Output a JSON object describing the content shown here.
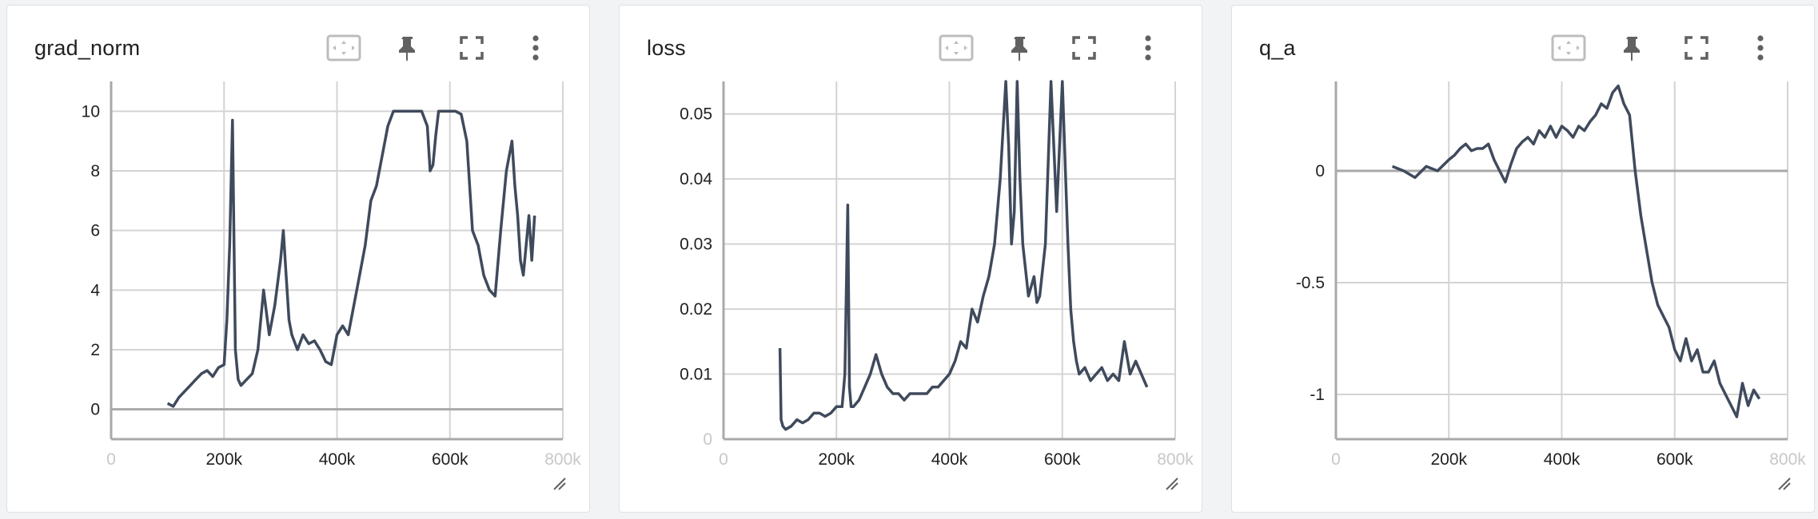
{
  "colors": {
    "line": "#3f4a5c",
    "grid": "#d4d4d4",
    "axis": "#a9a9a9",
    "tool": "#616161"
  },
  "toolbar": {
    "fit_domain_icon": "fit-domain-icon",
    "pin_icon": "pin-icon",
    "fullscreen_icon": "fullscreen-icon",
    "more_icon": "more-vert-icon",
    "resize_icon": "resize-handle-icon"
  },
  "cards": [
    {
      "title": "grad_norm"
    },
    {
      "title": "loss"
    },
    {
      "title": "q_a"
    }
  ],
  "chart_data": [
    {
      "type": "line",
      "title": "grad_norm",
      "xlabel": "",
      "ylabel": "",
      "xlim": [
        0,
        800000
      ],
      "ylim": [
        -1,
        11
      ],
      "grid": true,
      "xticks": [
        {
          "v": 0,
          "t": "0",
          "faded": true
        },
        {
          "v": 200000,
          "t": "200k"
        },
        {
          "v": 400000,
          "t": "400k"
        },
        {
          "v": 600000,
          "t": "600k"
        },
        {
          "v": 800000,
          "t": "800k",
          "faded": true
        }
      ],
      "yticks": [
        {
          "v": 0,
          "t": "0"
        },
        {
          "v": 2,
          "t": "2"
        },
        {
          "v": 4,
          "t": "4"
        },
        {
          "v": 6,
          "t": "6"
        },
        {
          "v": 8,
          "t": "8"
        },
        {
          "v": 10,
          "t": "10"
        }
      ],
      "series": [
        {
          "x": [
            100000,
            110000,
            120000,
            130000,
            140000,
            150000,
            160000,
            170000,
            180000,
            190000,
            200000,
            205000,
            210000,
            215000,
            220000,
            225000,
            230000,
            240000,
            250000,
            260000,
            270000,
            280000,
            290000,
            300000,
            305000,
            310000,
            315000,
            320000,
            330000,
            340000,
            350000,
            360000,
            370000,
            380000,
            390000,
            400000,
            410000,
            420000,
            430000,
            440000,
            450000,
            460000,
            470000,
            480000,
            490000,
            500000,
            510000,
            520000,
            530000,
            540000,
            550000,
            560000,
            565000,
            570000,
            575000,
            580000,
            590000,
            600000,
            610000,
            620000,
            630000,
            640000,
            650000,
            660000,
            670000,
            680000,
            690000,
            700000,
            710000,
            715000,
            720000,
            725000,
            730000,
            740000,
            745000,
            750000
          ],
          "y": [
            0.2,
            0.1,
            0.4,
            0.6,
            0.8,
            1.0,
            1.2,
            1.3,
            1.1,
            1.4,
            1.5,
            3.0,
            5.5,
            9.7,
            2.0,
            1.0,
            0.8,
            1.0,
            1.2,
            2.0,
            4.0,
            2.5,
            3.5,
            5.0,
            6.0,
            4.5,
            3.0,
            2.5,
            2.0,
            2.5,
            2.2,
            2.3,
            2.0,
            1.6,
            1.5,
            2.5,
            2.8,
            2.5,
            3.5,
            4.5,
            5.5,
            7.0,
            7.5,
            8.5,
            9.5,
            10.0,
            10.0,
            10.0,
            10.0,
            10.0,
            10.0,
            9.5,
            8.0,
            8.2,
            9.2,
            10.0,
            10.0,
            10.0,
            10.0,
            9.9,
            9.0,
            6.0,
            5.5,
            4.5,
            4.0,
            3.8,
            6.0,
            8.0,
            9.0,
            7.5,
            6.5,
            5.0,
            4.5,
            6.5,
            5.0,
            6.5
          ]
        }
      ]
    },
    {
      "type": "line",
      "title": "loss",
      "xlabel": "",
      "ylabel": "",
      "xlim": [
        0,
        800000
      ],
      "ylim": [
        0,
        0.055
      ],
      "grid": true,
      "xticks": [
        {
          "v": 0,
          "t": "0",
          "faded": true
        },
        {
          "v": 200000,
          "t": "200k"
        },
        {
          "v": 400000,
          "t": "400k"
        },
        {
          "v": 600000,
          "t": "600k"
        },
        {
          "v": 800000,
          "t": "800k",
          "faded": true
        }
      ],
      "yticks": [
        {
          "v": 0,
          "t": "0",
          "faded": true
        },
        {
          "v": 0.01,
          "t": "0.01"
        },
        {
          "v": 0.02,
          "t": "0.02"
        },
        {
          "v": 0.03,
          "t": "0.03"
        },
        {
          "v": 0.04,
          "t": "0.04"
        },
        {
          "v": 0.05,
          "t": "0.05"
        }
      ],
      "series": [
        {
          "x": [
            100000,
            102000,
            105000,
            110000,
            120000,
            130000,
            140000,
            150000,
            160000,
            170000,
            180000,
            190000,
            200000,
            210000,
            215000,
            220000,
            223000,
            226000,
            230000,
            240000,
            250000,
            260000,
            270000,
            280000,
            290000,
            300000,
            310000,
            320000,
            330000,
            340000,
            350000,
            360000,
            370000,
            380000,
            390000,
            400000,
            410000,
            420000,
            430000,
            440000,
            450000,
            460000,
            470000,
            480000,
            490000,
            500000,
            505000,
            510000,
            515000,
            520000,
            525000,
            530000,
            540000,
            550000,
            555000,
            560000,
            570000,
            580000,
            590000,
            600000,
            610000,
            615000,
            620000,
            625000,
            630000,
            640000,
            650000,
            660000,
            670000,
            680000,
            690000,
            700000,
            710000,
            720000,
            730000,
            740000,
            750000
          ],
          "y": [
            0.014,
            0.003,
            0.002,
            0.0015,
            0.002,
            0.003,
            0.0025,
            0.003,
            0.004,
            0.004,
            0.0035,
            0.004,
            0.005,
            0.005,
            0.01,
            0.036,
            0.008,
            0.005,
            0.005,
            0.006,
            0.008,
            0.01,
            0.013,
            0.01,
            0.008,
            0.007,
            0.007,
            0.006,
            0.007,
            0.007,
            0.007,
            0.007,
            0.008,
            0.008,
            0.009,
            0.01,
            0.012,
            0.015,
            0.014,
            0.02,
            0.018,
            0.022,
            0.025,
            0.03,
            0.04,
            0.055,
            0.045,
            0.03,
            0.035,
            0.055,
            0.04,
            0.03,
            0.022,
            0.025,
            0.021,
            0.022,
            0.03,
            0.055,
            0.035,
            0.055,
            0.03,
            0.02,
            0.015,
            0.012,
            0.01,
            0.011,
            0.009,
            0.01,
            0.011,
            0.009,
            0.01,
            0.009,
            0.015,
            0.01,
            0.012,
            0.01,
            0.008
          ]
        }
      ]
    },
    {
      "type": "line",
      "title": "q_a",
      "xlabel": "",
      "ylabel": "",
      "xlim": [
        0,
        800000
      ],
      "ylim": [
        -1.2,
        0.4
      ],
      "grid": true,
      "xticks": [
        {
          "v": 0,
          "t": "0",
          "faded": true
        },
        {
          "v": 200000,
          "t": "200k"
        },
        {
          "v": 400000,
          "t": "400k"
        },
        {
          "v": 600000,
          "t": "600k"
        },
        {
          "v": 800000,
          "t": "800k",
          "faded": true
        }
      ],
      "yticks": [
        {
          "v": -1,
          "t": "-1"
        },
        {
          "v": -0.5,
          "t": "-0.5"
        },
        {
          "v": 0,
          "t": "0"
        }
      ],
      "series": [
        {
          "x": [
            100000,
            120000,
            140000,
            160000,
            180000,
            200000,
            210000,
            220000,
            230000,
            240000,
            250000,
            260000,
            270000,
            280000,
            290000,
            300000,
            310000,
            320000,
            330000,
            340000,
            350000,
            360000,
            370000,
            380000,
            390000,
            400000,
            410000,
            420000,
            430000,
            440000,
            450000,
            460000,
            470000,
            480000,
            490000,
            500000,
            510000,
            520000,
            530000,
            540000,
            550000,
            560000,
            570000,
            580000,
            590000,
            600000,
            610000,
            620000,
            630000,
            640000,
            650000,
            660000,
            670000,
            680000,
            690000,
            700000,
            710000,
            720000,
            730000,
            740000,
            750000
          ],
          "y": [
            0.02,
            0.0,
            -0.03,
            0.02,
            0.0,
            0.05,
            0.07,
            0.1,
            0.12,
            0.09,
            0.1,
            0.1,
            0.12,
            0.05,
            0.0,
            -0.05,
            0.03,
            0.1,
            0.13,
            0.15,
            0.12,
            0.18,
            0.15,
            0.2,
            0.15,
            0.2,
            0.18,
            0.15,
            0.2,
            0.18,
            0.22,
            0.25,
            0.3,
            0.28,
            0.35,
            0.38,
            0.3,
            0.25,
            0.0,
            -0.2,
            -0.35,
            -0.5,
            -0.6,
            -0.65,
            -0.7,
            -0.8,
            -0.85,
            -0.75,
            -0.85,
            -0.8,
            -0.9,
            -0.9,
            -0.85,
            -0.95,
            -1.0,
            -1.05,
            -1.1,
            -0.95,
            -1.05,
            -0.98,
            -1.02
          ]
        }
      ]
    }
  ]
}
